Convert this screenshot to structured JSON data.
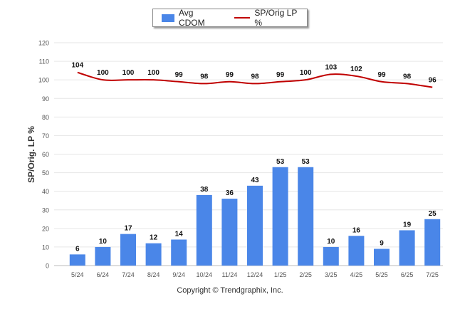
{
  "chart_data": {
    "type": "bar+line",
    "categories": [
      "5/24",
      "6/24",
      "7/24",
      "8/24",
      "9/24",
      "10/24",
      "11/24",
      "12/24",
      "1/25",
      "2/25",
      "3/25",
      "4/25",
      "5/25",
      "6/25",
      "7/25"
    ],
    "series": [
      {
        "name": "Avg CDOM",
        "type": "bar",
        "color": "#4a86e8",
        "values": [
          6,
          10,
          17,
          12,
          14,
          38,
          36,
          43,
          53,
          53,
          10,
          16,
          9,
          19,
          25
        ]
      },
      {
        "name": "SP/Orig LP %",
        "type": "line",
        "color": "#c00000",
        "values": [
          104,
          100,
          100,
          100,
          99,
          98,
          99,
          98,
          99,
          100,
          103,
          102,
          99,
          98,
          96
        ]
      }
    ],
    "ylabel": "SP/Orig. LP %",
    "ylim": [
      0,
      120
    ],
    "yticks": [
      0,
      10,
      20,
      30,
      40,
      50,
      60,
      70,
      80,
      90,
      100,
      110,
      120
    ],
    "grid": true,
    "legend_position": "top-center"
  },
  "footer": "Copyright © Trendgraphix, Inc."
}
